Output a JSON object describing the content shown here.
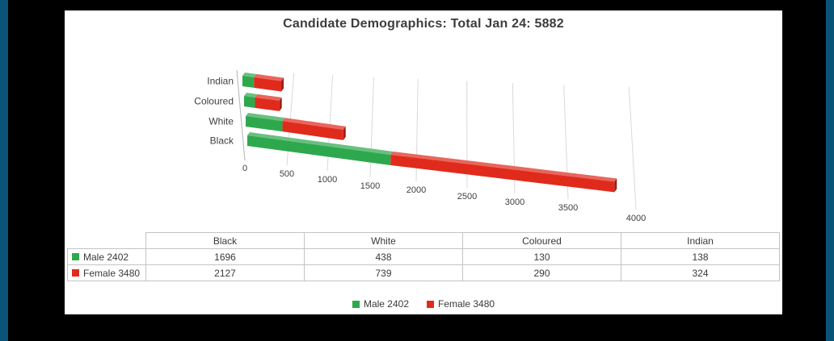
{
  "frame": {
    "background": "#000000",
    "edge_stripe_color": "#0a5577",
    "panel_background": "#ffffff"
  },
  "title": "Candidate Demographics: Total Jan 24: 5882",
  "chart_data": {
    "type": "bar",
    "orientation": "horizontal",
    "projection": "3d",
    "stacked": true,
    "title": "Candidate Demographics: Total Jan 24: 5882",
    "total": 5882,
    "categories": [
      "Black",
      "White",
      "Coloured",
      "Indian"
    ],
    "series": [
      {
        "name": "Male 2402",
        "color": "#2EA84D",
        "values": [
          1696,
          438,
          130,
          138
        ]
      },
      {
        "name": "Female 3480",
        "color": "#E02B1C",
        "values": [
          2127,
          739,
          290,
          324
        ]
      }
    ],
    "x_axis": {
      "min": 0,
      "max": 4000,
      "tick_step": 500,
      "tick_labels": [
        "0",
        "500",
        "1000",
        "1500",
        "2000",
        "2500",
        "3000",
        "3500",
        "4000"
      ]
    },
    "grid": true,
    "legend_position": "bottom",
    "colors": {
      "gridline": "#d9d9d9",
      "axis_line": "#bfbfbf",
      "label_text": "#404040"
    }
  },
  "table": {
    "corner_label": "",
    "columns": [
      "Black",
      "White",
      "Coloured",
      "Indian"
    ],
    "rows": [
      {
        "label": "Male 2402",
        "key_color": "#2EA84D",
        "values": [
          "1696",
          "438",
          "130",
          "138"
        ]
      },
      {
        "label": "Female 3480",
        "key_color": "#E02B1C",
        "values": [
          "2127",
          "739",
          "290",
          "324"
        ]
      }
    ]
  },
  "legend": {
    "items": [
      {
        "label": "Male 2402",
        "color": "#2EA84D"
      },
      {
        "label": "Female 3480",
        "color": "#E02B1C"
      }
    ]
  }
}
